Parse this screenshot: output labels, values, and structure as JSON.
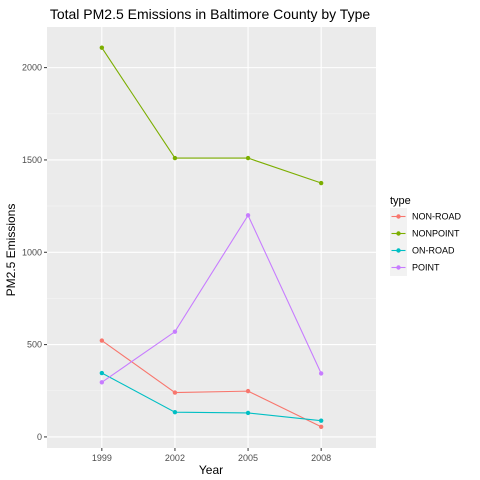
{
  "chart_data": {
    "type": "line",
    "title": "Total PM2.5 Emissions in Baltimore County by Type",
    "xlabel": "Year",
    "ylabel": "PM2.5 Emissions",
    "x": [
      1999,
      2002,
      2005,
      2008
    ],
    "x_tick_labels": [
      "1999",
      "2002",
      "2005",
      "2008"
    ],
    "y_ticks": [
      0,
      500,
      1000,
      1500,
      2000
    ],
    "y_tick_labels": [
      "0",
      "500",
      "1000",
      "1500",
      "2000"
    ],
    "ylim": [
      -60,
      2220
    ],
    "grid": true,
    "legend": {
      "title": "type",
      "placement": "right"
    },
    "series": [
      {
        "name": "NON-ROAD",
        "color": "#f8766d",
        "values": [
          522,
          240,
          248,
          55
        ]
      },
      {
        "name": "NONPOINT",
        "color": "#7cae00",
        "values": [
          2108,
          1510,
          1510,
          1375
        ]
      },
      {
        "name": "ON-ROAD",
        "color": "#00bfc4",
        "values": [
          346,
          134,
          130,
          88
        ]
      },
      {
        "name": "POINT",
        "color": "#c77cff",
        "values": [
          296,
          570,
          1200,
          344
        ]
      }
    ]
  }
}
